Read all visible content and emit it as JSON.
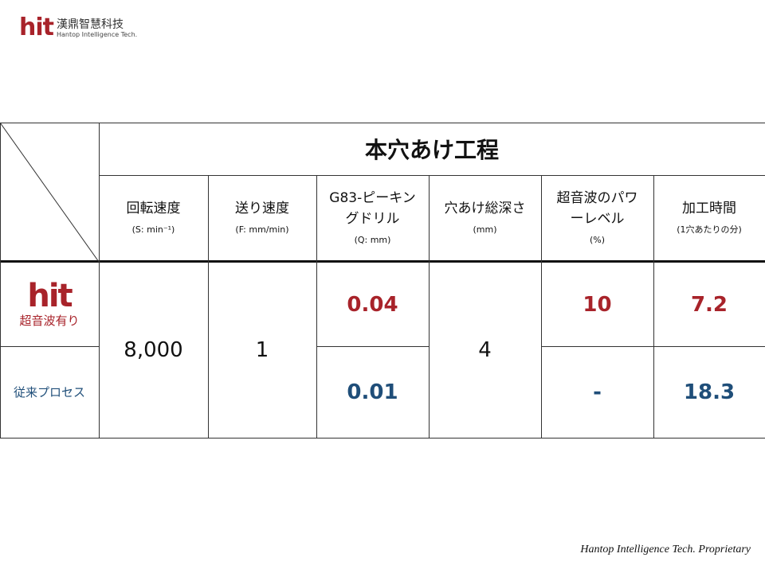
{
  "logo": {
    "brand": "hit",
    "name_cn": "漢鼎智慧科技",
    "name_en": "Hantop Intelligence Tech."
  },
  "table": {
    "title": "本穴あけ工程",
    "columns": [
      {
        "label": "回転速度",
        "unit": "(S: min⁻¹)"
      },
      {
        "label": "送り速度",
        "unit": "(F: mm/min)"
      },
      {
        "label": "G83-ピーキングドリル",
        "unit": "(Q: mm)"
      },
      {
        "label": "穴あけ総深さ",
        "unit": "(mm)"
      },
      {
        "label": "超音波のパワーレベル",
        "unit": "(%)"
      },
      {
        "label": "加工時間",
        "unit": "(1穴あたりの分)"
      }
    ],
    "rows": [
      {
        "brand": "hit",
        "label": "超音波有り",
        "peck": "0.04",
        "power": "10",
        "time": "7.2"
      },
      {
        "label": "従来プロセス",
        "peck": "0.01",
        "power": "-",
        "time": "18.3"
      }
    ],
    "shared": {
      "speed": "8,000",
      "feed": "1",
      "depth": "4"
    }
  },
  "footer": "Hantop Intelligence Tech. Proprietary",
  "colors": {
    "accent_red": "#a8232a",
    "accent_blue": "#1f4e79"
  }
}
